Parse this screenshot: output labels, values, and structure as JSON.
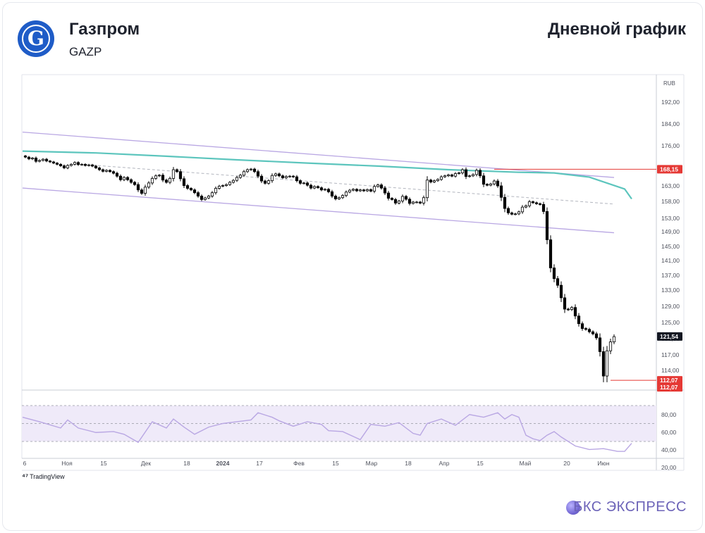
{
  "header": {
    "company": "Газпром",
    "ticker": "GAZP",
    "chart_kind": "Дневной график"
  },
  "footer": {
    "tradingview": "TradingView",
    "brand": "БКС ЭКСПРЕСС"
  },
  "colors": {
    "logo": "#1f5cc7",
    "candle_up": "#ffffff",
    "candle_down": "#000000",
    "ma_line": "#5cc5bd",
    "channel": "#b9a7e3",
    "level": "#e53935",
    "rsi": "#b9a7e3",
    "rsi_band": "#efeaf9",
    "brand": "#6c63b8"
  },
  "chart_data": [
    {
      "type": "candlestick",
      "currency_label": "RUB",
      "x_ticks": [
        "6",
        "Ноя",
        "15",
        "Дек",
        "18",
        "2024",
        "17",
        "Фев",
        "15",
        "Мар",
        "18",
        "Апр",
        "15",
        "Май",
        "20",
        "Июн"
      ],
      "y_ticks": [
        "192,00",
        "184,00",
        "176,00",
        "168,00",
        "163,00",
        "158,00",
        "153,00",
        "149,00",
        "145,00",
        "141,00",
        "137,00",
        "133,00",
        "129,00",
        "125,00",
        "121,00",
        "117,00",
        "114,00"
      ],
      "price_labels": [
        {
          "text": "168,15",
          "value": 168.15,
          "style": "level"
        },
        {
          "text": "121,54",
          "value": 121.54,
          "style": "last"
        },
        {
          "text": "112,07",
          "value": 112.07,
          "style": "level"
        },
        {
          "text": "112,07",
          "value": 112.07,
          "style": "level"
        }
      ],
      "moving_average": {
        "x": [
          0,
          20,
          40,
          60,
          80,
          100,
          120,
          140,
          150,
          160,
          170,
          172
        ],
        "y": [
          174.2,
          173.6,
          172.5,
          171.3,
          170.2,
          169.2,
          168.0,
          167.2,
          167.0,
          165.7,
          162.0,
          158.8
        ]
      },
      "channel": {
        "upper": {
          "x": [
            0,
            167
          ],
          "y": [
            181.0,
            165.6
          ]
        },
        "lower": {
          "x": [
            0,
            167
          ],
          "y": [
            162.3,
            148.7
          ]
        },
        "mid": {
          "x": [
            20,
            167
          ],
          "y": [
            169.5,
            157.2
          ]
        }
      },
      "level_lines": [
        {
          "value": 168.15,
          "from_x": 133
        },
        {
          "value": 112.07,
          "from_x": 166
        }
      ],
      "close": [
        172.2,
        171.6,
        171.9,
        170.8,
        171.1,
        171.5,
        170.9,
        170.6,
        170.2,
        169.8,
        169.3,
        168.6,
        169.4,
        169.8,
        170.4,
        169.7,
        169.8,
        169.4,
        169.6,
        169.2,
        168.6,
        168.0,
        167.5,
        167.8,
        167.4,
        166.9,
        166.0,
        164.9,
        165.6,
        164.9,
        164.1,
        163.4,
        161.7,
        160.6,
        162.6,
        163.9,
        165.3,
        166.1,
        166.3,
        164.8,
        164.1,
        165.3,
        168.0,
        167.4,
        165.2,
        163.1,
        162.2,
        161.7,
        160.8,
        159.7,
        158.6,
        159.1,
        159.7,
        160.8,
        162.2,
        162.9,
        163.1,
        163.4,
        164.1,
        164.7,
        165.6,
        166.3,
        167.4,
        168.0,
        168.2,
        167.4,
        166.0,
        164.5,
        163.8,
        164.6,
        166.2,
        166.7,
        166.1,
        165.5,
        165.9,
        166.0,
        165.8,
        164.6,
        163.8,
        163.9,
        163.2,
        162.3,
        162.8,
        162.4,
        161.7,
        161.9,
        161.1,
        159.7,
        158.8,
        159.2,
        159.9,
        161.0,
        161.6,
        161.9,
        161.4,
        161.7,
        161.4,
        161.8,
        161.3,
        162.8,
        163.3,
        162.3,
        160.7,
        159.0,
        158.6,
        157.5,
        158.1,
        159.6,
        158.7,
        157.4,
        157.8,
        157.8,
        157.5,
        159.2,
        164.8,
        164.2,
        164.6,
        165.0,
        165.8,
        166.1,
        166.4,
        166.0,
        166.8,
        167.0,
        168.0,
        165.9,
        166.1,
        166.5,
        167.8,
        166.1,
        163.5,
        163.2,
        163.6,
        164.5,
        163.0,
        159.3,
        155.9,
        154.6,
        154.2,
        154.3,
        154.9,
        156.3,
        156.7,
        157.9,
        157.6,
        157.3,
        157.1,
        155.0,
        146.8,
        139.0,
        136.1,
        134.3,
        131.1,
        128.3,
        128.2,
        128.7,
        126.6,
        124.7,
        123.5,
        123.3,
        122.7,
        122.2,
        121.2,
        117.8,
        112.9,
        118.0,
        120.2,
        121.5
      ],
      "last_close": 121.54,
      "rsi": {
        "levels": [
          70,
          50,
          30
        ],
        "y_ticks": [
          "80,00",
          "60,00",
          "40,00",
          "20,00"
        ],
        "anchors": {
          "x": [
            0,
            4,
            10,
            12,
            15,
            20,
            25,
            28,
            32,
            36,
            40,
            42,
            45,
            48,
            52,
            56,
            60,
            64,
            66,
            70,
            72,
            76,
            80,
            84,
            86,
            90,
            95,
            98,
            102,
            106,
            110,
            112,
            114,
            118,
            122,
            126,
            130,
            134,
            136,
            138,
            140,
            142,
            144,
            146,
            148,
            150,
            152,
            156,
            160,
            164,
            168,
            170,
            172
          ],
          "y": [
            57,
            52,
            45,
            54,
            45,
            40,
            41,
            38,
            29,
            52,
            45,
            55,
            46,
            38,
            46,
            50,
            52,
            54,
            62,
            57,
            53,
            47,
            52,
            49,
            42,
            41,
            32,
            49,
            47,
            51,
            39,
            37,
            50,
            55,
            48,
            60,
            57,
            62,
            55,
            60,
            57,
            37,
            33,
            31,
            37,
            41,
            35,
            25,
            21,
            22,
            19,
            19,
            28
          ]
        }
      }
    }
  ]
}
